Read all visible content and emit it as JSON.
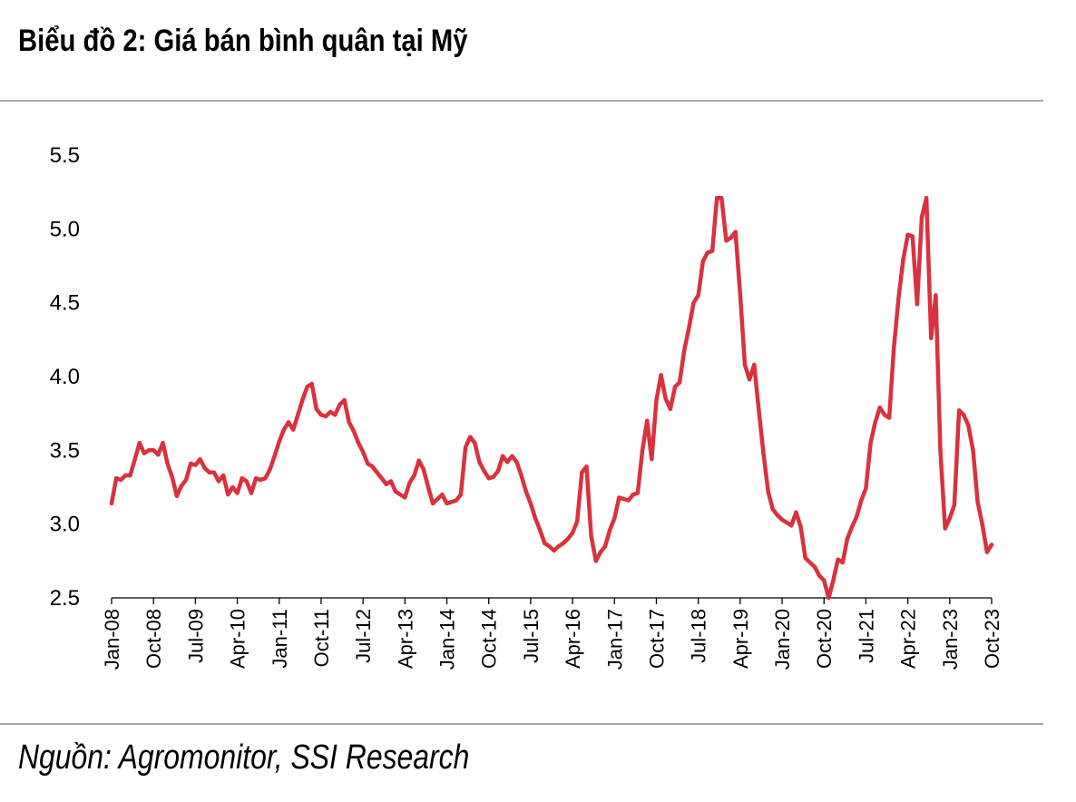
{
  "title": "Biểu đồ 2: Giá bán bình quân tại Mỹ",
  "source": "Nguồn: Agromonitor, SSI Research",
  "chart_data": {
    "type": "line",
    "title": "Biểu đồ 2: Giá bán bình quân tại Mỹ",
    "xlabel": "",
    "ylabel": "",
    "ylim": [
      2.5,
      5.5
    ],
    "yticks": [
      "2.5",
      "3.0",
      "3.5",
      "4.0",
      "4.5",
      "5.0",
      "5.5"
    ],
    "xticks": [
      "Jan-08",
      "Oct-08",
      "Jul-09",
      "Apr-10",
      "Jan-11",
      "Oct-11",
      "Jul-12",
      "Apr-13",
      "Jan-14",
      "Oct-14",
      "Jul-15",
      "Apr-16",
      "Jan-17",
      "Oct-17",
      "Jul-18",
      "Apr-19",
      "Jan-20",
      "Oct-20",
      "Jul-21",
      "Apr-22",
      "Jan-23",
      "Oct-23"
    ],
    "x_start": "2008-01",
    "color": "#d9323e",
    "grid": false,
    "legend": "none",
    "series": [
      {
        "values": [
          3.14,
          3.31,
          3.3,
          3.33,
          3.33,
          3.44,
          3.55,
          3.48,
          3.5,
          3.5,
          3.47,
          3.55,
          3.41,
          3.32,
          3.19,
          3.26,
          3.3,
          3.41,
          3.4,
          3.44,
          3.38,
          3.35,
          3.35,
          3.29,
          3.33,
          3.2,
          3.25,
          3.21,
          3.31,
          3.29,
          3.21,
          3.31,
          3.3,
          3.31,
          3.37,
          3.46,
          3.56,
          3.64,
          3.69,
          3.64,
          3.74,
          3.84,
          3.93,
          3.95,
          3.78,
          3.74,
          3.73,
          3.76,
          3.74,
          3.81,
          3.84,
          3.69,
          3.63,
          3.55,
          3.49,
          3.41,
          3.39,
          3.35,
          3.31,
          3.27,
          3.29,
          3.22,
          3.2,
          3.18,
          3.28,
          3.33,
          3.43,
          3.37,
          3.25,
          3.14,
          3.17,
          3.2,
          3.14,
          3.15,
          3.16,
          3.2,
          3.52,
          3.59,
          3.55,
          3.42,
          3.36,
          3.31,
          3.32,
          3.36,
          3.46,
          3.42,
          3.46,
          3.42,
          3.33,
          3.22,
          3.14,
          3.04,
          2.96,
          2.87,
          2.85,
          2.82,
          2.85,
          2.87,
          2.9,
          2.94,
          3.02,
          3.35,
          3.39,
          2.92,
          2.75,
          2.81,
          2.85,
          2.96,
          3.04,
          3.18,
          3.17,
          3.16,
          3.2,
          3.21,
          3.5,
          3.7,
          3.44,
          3.84,
          4.01,
          3.85,
          3.78,
          3.93,
          3.96,
          4.18,
          4.33,
          4.5,
          4.55,
          4.78,
          4.84,
          4.85,
          5.21,
          5.21,
          4.92,
          4.94,
          4.98,
          4.55,
          4.08,
          3.98,
          4.08,
          3.77,
          3.48,
          3.22,
          3.1,
          3.06,
          3.03,
          3.01,
          2.99,
          3.08,
          2.98,
          2.77,
          2.74,
          2.71,
          2.65,
          2.62,
          2.5,
          2.62,
          2.76,
          2.74,
          2.9,
          2.98,
          3.05,
          3.16,
          3.24,
          3.55,
          3.69,
          3.79,
          3.74,
          3.72,
          4.19,
          4.53,
          4.79,
          4.96,
          4.95,
          4.49,
          5.08,
          5.21,
          4.26,
          4.55,
          3.5,
          2.97,
          3.04,
          3.13,
          3.77,
          3.74,
          3.67,
          3.5,
          3.15,
          3.0,
          2.81,
          2.86
        ]
      }
    ]
  }
}
